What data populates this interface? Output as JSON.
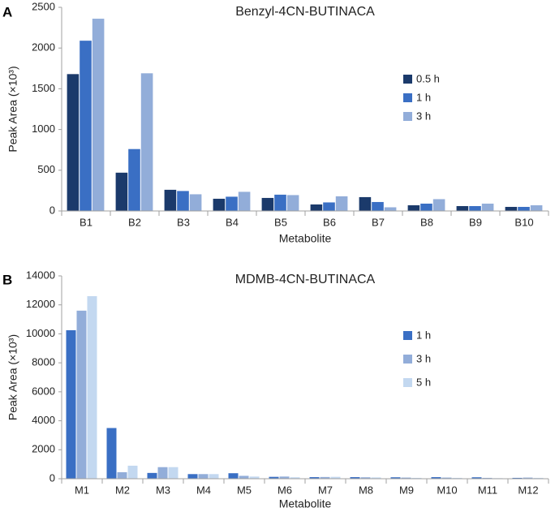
{
  "chart_data": [
    {
      "panel_label": "A",
      "type": "bar",
      "title": "Benzyl-4CN-BUTINACA",
      "xlabel": "Metabolite",
      "ylabel": "Peak Area (×10³)",
      "ylim": [
        0,
        2500
      ],
      "yticks": [
        0,
        500,
        1000,
        1500,
        2000,
        2500
      ],
      "legend_position": "right",
      "categories": [
        "B1",
        "B2",
        "B3",
        "B4",
        "B5",
        "B6",
        "B7",
        "B8",
        "B9",
        "B10"
      ],
      "series": [
        {
          "name": "0.5 h",
          "color": "#1b3a6b",
          "values": [
            1680,
            470,
            260,
            150,
            160,
            80,
            170,
            70,
            60,
            50
          ]
        },
        {
          "name": "1 h",
          "color": "#3a6fc4",
          "values": [
            2090,
            760,
            245,
            175,
            200,
            105,
            110,
            90,
            60,
            50
          ]
        },
        {
          "name": "3 h",
          "color": "#92add9",
          "values": [
            2360,
            1690,
            205,
            235,
            195,
            180,
            45,
            145,
            90,
            70
          ]
        }
      ]
    },
    {
      "panel_label": "B",
      "type": "bar",
      "title": "MDMB-4CN-BUTINACA",
      "xlabel": "Metabolite",
      "ylabel": "Peak Area (×10³)",
      "ylim": [
        0,
        14000
      ],
      "yticks": [
        0,
        2000,
        4000,
        6000,
        8000,
        10000,
        12000,
        14000
      ],
      "legend_position": "right",
      "categories": [
        "M1",
        "M2",
        "M3",
        "M4",
        "M5",
        "M6",
        "M7",
        "M8",
        "M9",
        "M10",
        "M11",
        "M12"
      ],
      "series": [
        {
          "name": "1 h",
          "color": "#3a6fc4",
          "values": [
            10250,
            3500,
            400,
            320,
            380,
            130,
            110,
            110,
            100,
            110,
            100,
            60
          ]
        },
        {
          "name": "3 h",
          "color": "#92add9",
          "values": [
            11600,
            450,
            800,
            320,
            200,
            150,
            120,
            100,
            80,
            80,
            60,
            80
          ]
        },
        {
          "name": "5 h",
          "color": "#c3d8f0",
          "values": [
            12600,
            900,
            800,
            320,
            150,
            100,
            130,
            90,
            60,
            60,
            40,
            60
          ]
        }
      ]
    }
  ]
}
